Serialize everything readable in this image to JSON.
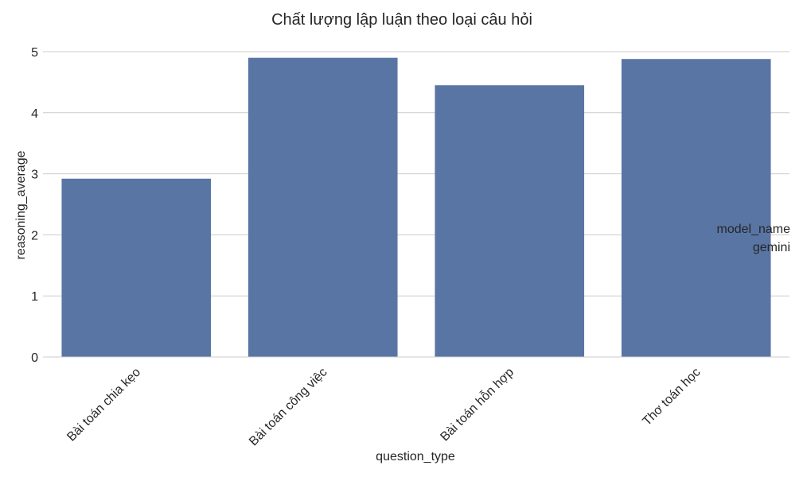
{
  "chart_data": {
    "type": "bar",
    "title": "Chất lượng lập luận theo loại câu hỏi",
    "xlabel": "question_type",
    "ylabel": "reasoning_average",
    "categories": [
      "Bài toán chia kẹo",
      "Bài toán công việc",
      "Bài toán hỗn hợp",
      "Thơ toán học"
    ],
    "series": [
      {
        "name": "gemini",
        "values": [
          2.92,
          4.9,
          4.45,
          4.88
        ],
        "color": "#5975a4"
      }
    ],
    "ylim": [
      0,
      5
    ],
    "yticks": [
      0,
      1,
      2,
      3,
      4,
      5
    ],
    "grid": true,
    "legend": {
      "title": "model_name",
      "placement": "center-right"
    }
  }
}
